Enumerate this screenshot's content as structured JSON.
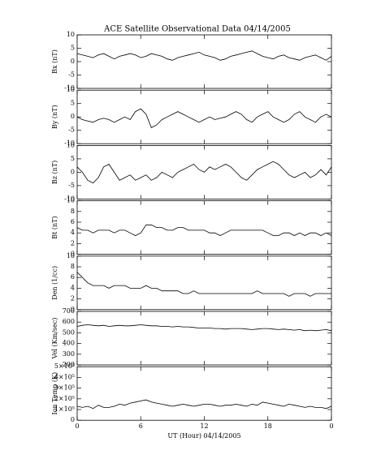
{
  "chart_data": [
    {
      "type": "line",
      "title": "ACE Satellite Observational Data   04/14/2005",
      "ylabel": "Bx (nT)",
      "color": "#000000",
      "x": [
        0,
        0.5,
        1,
        1.5,
        2,
        2.5,
        3,
        3.5,
        4,
        4.5,
        5,
        5.5,
        6,
        6.5,
        7,
        7.5,
        8,
        8.5,
        9,
        9.5,
        10,
        10.5,
        11,
        11.5,
        12,
        12.5,
        13,
        13.5,
        14,
        14.5,
        15,
        15.5,
        16,
        16.5,
        17,
        17.5,
        18,
        18.5,
        19,
        19.5,
        20,
        20.5,
        21,
        21.5,
        22,
        22.5,
        23,
        23.5,
        24
      ],
      "values": [
        3,
        2.5,
        2,
        1.5,
        2.5,
        3,
        2,
        1,
        2,
        2.5,
        3,
        2.5,
        1.5,
        2,
        3,
        2.5,
        2,
        1,
        0.5,
        1.5,
        2,
        2.5,
        3,
        3.5,
        2.5,
        2,
        1.5,
        0.5,
        1,
        2,
        2.5,
        3,
        3.5,
        4,
        3,
        2,
        1.5,
        1,
        2,
        2.5,
        1.5,
        1,
        0.5,
        1.5,
        2,
        2.5,
        1.5,
        0.5,
        2
      ],
      "xlim": [
        0,
        24
      ],
      "ylim": [
        -10,
        10
      ],
      "yticks": [
        -10,
        -5,
        0,
        5,
        10
      ]
    },
    {
      "type": "line",
      "ylabel": "By (nT)",
      "color": "#000000",
      "x": [
        0,
        0.5,
        1,
        1.5,
        2,
        2.5,
        3,
        3.5,
        4,
        4.5,
        5,
        5.5,
        6,
        6.5,
        7,
        7.5,
        8,
        8.5,
        9,
        9.5,
        10,
        10.5,
        11,
        11.5,
        12,
        12.5,
        13,
        13.5,
        14,
        14.5,
        15,
        15.5,
        16,
        16.5,
        17,
        17.5,
        18,
        18.5,
        19,
        19.5,
        20,
        20.5,
        21,
        21.5,
        22,
        22.5,
        23,
        23.5,
        24
      ],
      "values": [
        0,
        -1,
        -1.5,
        -2,
        -1,
        -0.5,
        -1,
        -2,
        -1,
        0,
        -1,
        2,
        3,
        1,
        -4,
        -3,
        -1,
        0,
        1,
        2,
        1,
        0,
        -1,
        -2,
        -1,
        0,
        -1,
        -0.5,
        0,
        1,
        2,
        1,
        -1,
        -2,
        0,
        1,
        2,
        0,
        -1,
        -2,
        -1,
        1,
        2,
        0,
        -1,
        -2,
        0,
        1,
        0
      ],
      "xlim": [
        0,
        24
      ],
      "ylim": [
        -10,
        10
      ],
      "yticks": [
        -10,
        -5,
        0,
        5,
        10
      ]
    },
    {
      "type": "line",
      "ylabel": "Bz (nT)",
      "color": "#000000",
      "x": [
        0,
        0.5,
        1,
        1.5,
        2,
        2.5,
        3,
        3.5,
        4,
        4.5,
        5,
        5.5,
        6,
        6.5,
        7,
        7.5,
        8,
        8.5,
        9,
        9.5,
        10,
        10.5,
        11,
        11.5,
        12,
        12.5,
        13,
        13.5,
        14,
        14.5,
        15,
        15.5,
        16,
        16.5,
        17,
        17.5,
        18,
        18.5,
        19,
        19.5,
        20,
        20.5,
        21,
        21.5,
        22,
        22.5,
        23,
        23.5,
        24
      ],
      "values": [
        2,
        0,
        -3,
        -4,
        -2,
        2,
        3,
        0,
        -3,
        -2,
        -1,
        -3,
        -2,
        -1,
        -3,
        -2,
        0,
        -1,
        -2,
        0,
        1,
        2,
        3,
        1,
        0,
        2,
        1,
        2,
        3,
        2,
        0,
        -2,
        -3,
        -1,
        1,
        2,
        3,
        4,
        3,
        1,
        -1,
        -2,
        -1,
        0,
        -2,
        -1,
        1,
        -1,
        2
      ],
      "xlim": [
        0,
        24
      ],
      "ylim": [
        -10,
        10
      ],
      "yticks": [
        -10,
        -5,
        0,
        5,
        10
      ]
    },
    {
      "type": "line",
      "ylabel": "Bt (nT)",
      "color": "#000000",
      "x": [
        0,
        0.5,
        1,
        1.5,
        2,
        2.5,
        3,
        3.5,
        4,
        4.5,
        5,
        5.5,
        6,
        6.5,
        7,
        7.5,
        8,
        8.5,
        9,
        9.5,
        10,
        10.5,
        11,
        11.5,
        12,
        12.5,
        13,
        13.5,
        14,
        14.5,
        15,
        15.5,
        16,
        16.5,
        17,
        17.5,
        18,
        18.5,
        19,
        19.5,
        20,
        20.5,
        21,
        21.5,
        22,
        22.5,
        23,
        23.5,
        24
      ],
      "values": [
        5,
        4.5,
        4.5,
        4,
        4.5,
        4.5,
        4.5,
        4,
        4.5,
        4.5,
        4,
        3.5,
        4,
        5.5,
        5.5,
        5,
        5,
        4.5,
        4.5,
        5,
        5,
        4.5,
        4.5,
        4.5,
        4.5,
        4,
        4,
        3.5,
        4,
        4.5,
        4.5,
        4.5,
        4.5,
        4.5,
        4.5,
        4.5,
        4,
        3.5,
        3.5,
        4,
        4,
        3.5,
        4,
        3.5,
        4,
        4,
        3.5,
        4,
        3.5
      ],
      "xlim": [
        0,
        24
      ],
      "ylim": [
        0,
        10
      ],
      "yticks": [
        0,
        2,
        4,
        6,
        8,
        10
      ]
    },
    {
      "type": "line",
      "ylabel": "Den (1/cc)",
      "color": "#000000",
      "x": [
        0,
        0.5,
        1,
        1.5,
        2,
        2.5,
        3,
        3.5,
        4,
        4.5,
        5,
        5.5,
        6,
        6.5,
        7,
        7.5,
        8,
        8.5,
        9,
        9.5,
        10,
        10.5,
        11,
        11.5,
        12,
        12.5,
        13,
        13.5,
        14,
        14.5,
        15,
        15.5,
        16,
        16.5,
        17,
        17.5,
        18,
        18.5,
        19,
        19.5,
        20,
        20.5,
        21,
        21.5,
        22,
        22.5,
        23,
        23.5,
        24
      ],
      "values": [
        7,
        6,
        5,
        4.5,
        4.5,
        4.5,
        4,
        4.5,
        4.5,
        4.5,
        4,
        4,
        4,
        4.5,
        4,
        4,
        3.5,
        3.5,
        3.5,
        3.5,
        3,
        3,
        3.5,
        3,
        3,
        3,
        3,
        3,
        3,
        3,
        3,
        3,
        3,
        3,
        3.5,
        3,
        3,
        3,
        3,
        3,
        2.5,
        3,
        3,
        3,
        2.5,
        3,
        3,
        3,
        3
      ],
      "xlim": [
        0,
        24
      ],
      "ylim": [
        0,
        10
      ],
      "yticks": [
        0,
        2,
        4,
        6,
        8,
        10
      ]
    },
    {
      "type": "line",
      "ylabel": "Vel (Km/sec)",
      "color": "#000000",
      "x": [
        0,
        0.5,
        1,
        1.5,
        2,
        2.5,
        3,
        3.5,
        4,
        4.5,
        5,
        5.5,
        6,
        6.5,
        7,
        7.5,
        8,
        8.5,
        9,
        9.5,
        10,
        10.5,
        11,
        11.5,
        12,
        12.5,
        13,
        13.5,
        14,
        14.5,
        15,
        15.5,
        16,
        16.5,
        17,
        17.5,
        18,
        18.5,
        19,
        19.5,
        20,
        20.5,
        21,
        21.5,
        22,
        22.5,
        23,
        23.5,
        24
      ],
      "values": [
        560,
        570,
        575,
        570,
        565,
        570,
        560,
        565,
        570,
        565,
        565,
        570,
        575,
        570,
        565,
        565,
        560,
        560,
        555,
        560,
        555,
        555,
        550,
        545,
        545,
        545,
        540,
        540,
        535,
        540,
        540,
        540,
        535,
        530,
        535,
        540,
        540,
        535,
        530,
        535,
        530,
        525,
        530,
        520,
        525,
        520,
        525,
        530,
        520
      ],
      "xlim": [
        0,
        24
      ],
      "ylim": [
        200,
        700
      ],
      "yticks": [
        200,
        300,
        400,
        500,
        600,
        700
      ]
    },
    {
      "type": "line",
      "ylabel": "Ion Temp (K)",
      "xlabel": "UT (Hour)   04/14/2005",
      "color": "#000000",
      "x": [
        0,
        0.5,
        1,
        1.5,
        2,
        2.5,
        3,
        3.5,
        4,
        4.5,
        5,
        5.5,
        6,
        6.5,
        7,
        7.5,
        8,
        8.5,
        9,
        9.5,
        10,
        10.5,
        11,
        11.5,
        12,
        12.5,
        13,
        13.5,
        14,
        14.5,
        15,
        15.5,
        16,
        16.5,
        17,
        17.5,
        18,
        18.5,
        19,
        19.5,
        20,
        20.5,
        21,
        21.5,
        22,
        22.5,
        23,
        23.5,
        24
      ],
      "values": [
        130000,
        120000,
        130000,
        110000,
        140000,
        120000,
        120000,
        130000,
        150000,
        140000,
        160000,
        170000,
        180000,
        190000,
        170000,
        160000,
        150000,
        140000,
        130000,
        140000,
        150000,
        140000,
        130000,
        140000,
        150000,
        150000,
        140000,
        130000,
        140000,
        140000,
        150000,
        140000,
        130000,
        150000,
        140000,
        170000,
        160000,
        150000,
        140000,
        130000,
        150000,
        140000,
        130000,
        120000,
        130000,
        120000,
        120000,
        110000,
        130000
      ],
      "xlim": [
        0,
        24
      ],
      "ylim": [
        0,
        500000
      ],
      "yticks": [
        0,
        {
          "value": 100000,
          "label": "1×10⁵"
        },
        {
          "value": 200000,
          "label": "2×10⁵"
        },
        {
          "value": 300000,
          "label": "3×10⁵"
        },
        {
          "value": 400000,
          "label": "4×10⁵"
        },
        {
          "value": 500000,
          "label": "5×10⁵"
        }
      ],
      "xticks": [
        0,
        6,
        12,
        18,
        {
          "value": 24,
          "label": "0"
        }
      ]
    }
  ]
}
